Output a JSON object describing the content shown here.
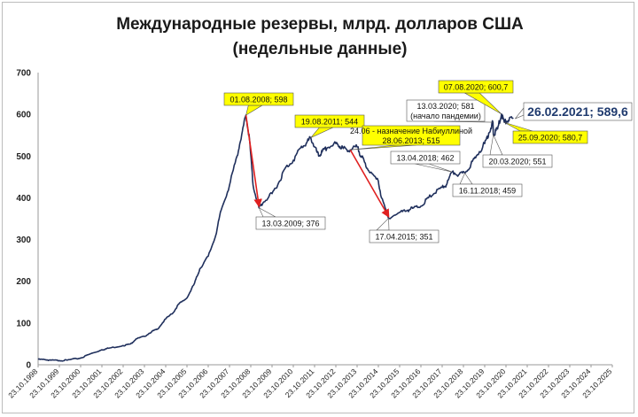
{
  "chart_data": {
    "type": "line",
    "title": "Международные резервы, млрд. долларов США",
    "subtitle": "(недельные данные)",
    "xlabel": "",
    "ylabel": "",
    "ylim": [
      0,
      700
    ],
    "yticks": [
      "0",
      "100",
      "200",
      "300",
      "400",
      "500",
      "600",
      "700"
    ],
    "xlim": [
      "1998-10-23",
      "2025-10-23"
    ],
    "xticks": [
      "23.10.1998",
      "23.10.1999",
      "23.10.2000",
      "23.10.2001",
      "23.10.2002",
      "23.10.2003",
      "23.10.2004",
      "23.10.2005",
      "23.10.2006",
      "23.10.2007",
      "23.10.2008",
      "23.10.2009",
      "23.10.2010",
      "23.10.2011",
      "23.10.2012",
      "23.10.2013",
      "23.10.2014",
      "23.10.2015",
      "23.10.2016",
      "23.10.2017",
      "23.10.2018",
      "23.10.2019",
      "23.10.2020",
      "23.10.2021",
      "23.10.2022",
      "23.10.2023",
      "23.10.2024",
      "23.10.2025"
    ],
    "grid": false,
    "line_color": "#1f2f5c",
    "arrow_color": "#e02020",
    "series": [
      {
        "x": [
          "1998-10-23",
          "1999-03-01",
          "1999-06-01",
          "1999-10-23",
          "2000-03-01",
          "2000-10-23",
          "2001-03-01",
          "2001-10-23",
          "2002-03-01",
          "2002-10-23",
          "2003-03-01",
          "2003-06-01",
          "2003-10-23",
          "2004-03-01",
          "2004-06-01",
          "2004-10-23",
          "2005-03-01",
          "2005-06-01",
          "2005-10-23",
          "2006-03-01",
          "2006-06-01",
          "2006-10-23",
          "2007-03-01",
          "2007-06-01",
          "2007-10-23",
          "2008-03-01",
          "2008-06-01",
          "2008-08-01",
          "2008-10-01",
          "2008-12-01",
          "2009-03-13",
          "2009-06-01",
          "2009-10-23",
          "2010-03-01",
          "2010-06-01",
          "2010-10-23",
          "2011-03-01",
          "2011-06-01",
          "2011-08-19",
          "2011-10-23",
          "2012-01-01",
          "2012-03-01",
          "2012-06-01",
          "2012-10-23",
          "2013-01-01",
          "2013-03-01",
          "2013-06-28",
          "2013-10-23",
          "2014-01-01",
          "2014-03-01",
          "2014-06-01",
          "2014-10-23",
          "2014-12-15",
          "2015-04-17",
          "2015-10-23",
          "2016-03-01",
          "2016-06-01",
          "2016-10-23",
          "2017-03-01",
          "2017-06-01",
          "2017-10-23",
          "2018-01-01",
          "2018-04-13",
          "2018-08-01",
          "2018-11-16",
          "2019-03-01",
          "2019-06-01",
          "2019-10-23",
          "2020-01-01",
          "2020-03-13",
          "2020-03-20",
          "2020-06-01",
          "2020-08-07",
          "2020-09-25",
          "2020-12-01",
          "2021-02-26"
        ],
        "values": [
          13,
          12,
          11,
          10,
          11,
          16,
          24,
          36,
          40,
          46,
          50,
          62,
          68,
          80,
          85,
          110,
          125,
          145,
          160,
          195,
          230,
          260,
          310,
          370,
          430,
          500,
          560,
          598,
          540,
          430,
          376,
          390,
          410,
          440,
          470,
          490,
          520,
          530,
          544,
          522,
          500,
          510,
          520,
          530,
          523,
          518,
          515,
          522,
          500,
          485,
          460,
          440,
          400,
          351,
          365,
          370,
          375,
          380,
          400,
          410,
          425,
          430,
          462,
          455,
          459,
          480,
          500,
          530,
          555,
          581,
          551,
          565,
          600.7,
          580.7,
          585,
          589.6
        ]
      }
    ],
    "annotations": [
      {
        "id": "a-2008-08",
        "text": "01.08.2008; 598",
        "highlight": true
      },
      {
        "id": "a-2009-03",
        "text": "13.03.2009; 376",
        "highlight": false
      },
      {
        "id": "a-2011-08",
        "text": "19.08.2011; 544",
        "highlight": true
      },
      {
        "id": "a-2013-06",
        "text_line1": "24.06 - назначение Набиуллиной",
        "text_line2": "28.06.2013; 515",
        "highlight": true
      },
      {
        "id": "a-2015-04",
        "text": "17.04.2015; 351",
        "highlight": false
      },
      {
        "id": "a-2018-04",
        "text": "13.04.2018; 462",
        "highlight": false
      },
      {
        "id": "a-2018-11",
        "text": "16.11.2018; 459",
        "highlight": false
      },
      {
        "id": "a-2020-03-13",
        "text_line1": "13.03.2020; 581",
        "text_line2": "(начало пандемии)",
        "highlight": false
      },
      {
        "id": "a-2020-03-20",
        "text": "20.03.2020; 551",
        "highlight": false
      },
      {
        "id": "a-2020-08",
        "text": "07.08.2020; 600,7",
        "highlight": true
      },
      {
        "id": "a-2020-09",
        "text": "25.09.2020; 580,7",
        "highlight": true
      },
      {
        "id": "a-2021-02",
        "text": "26.02.2021; 589,6",
        "highlight": false
      }
    ]
  }
}
